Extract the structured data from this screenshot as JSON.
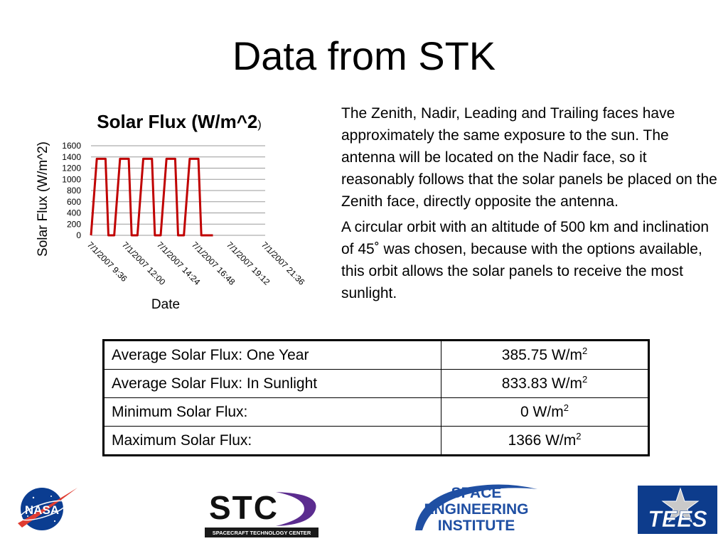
{
  "slide": {
    "title": "Data from STK"
  },
  "paragraphs": [
    "The Zenith, Nadir, Leading and Trailing faces have approximately the same exposure to the sun. The antenna will be located on the Nadir face, so it reasonably follows that the solar panels be placed on the Zenith face, directly opposite the antenna.",
    "A circular orbit with an altitude of 500 km and inclination of 45˚   was chosen, because with the options available, this orbit allows the solar panels to receive the most sunlight."
  ],
  "table": {
    "rows": [
      {
        "label": "Average Solar Flux: One Year",
        "value": "385.75 W/m",
        "exp": "2"
      },
      {
        "label": "Average Solar Flux: In Sunlight",
        "value": "833.83 W/m",
        "exp": "2"
      },
      {
        "label": "Minimum Solar Flux:",
        "value": "0 W/m",
        "exp": "2"
      },
      {
        "label": "Maximum Solar Flux:",
        "value": "1366 W/m",
        "exp": "2"
      }
    ]
  },
  "chart_data": {
    "type": "line",
    "title": "Solar Flux (W/m^2)",
    "xlabel": "Date",
    "ylabel": "Solar Flux (W/m^2)",
    "ylim": [
      0,
      1600
    ],
    "yticks": [
      0,
      200,
      400,
      600,
      800,
      1000,
      1200,
      1400,
      1600
    ],
    "xlim": [
      "7/1/2007 9:36",
      "7/1/2007 21:36"
    ],
    "xticks": [
      "7/1/2007 9:36",
      "7/1/2007 12:00",
      "7/1/2007 14:24",
      "7/1/2007 16:48",
      "7/1/2007 19:12",
      "7/1/2007 21:36"
    ],
    "grid": true,
    "legend": "none",
    "color": "#c00000",
    "series": [
      {
        "x": [
          "7/1/2007 9:36",
          "7/1/2007 10:00",
          "7/1/2007 10:12",
          "7/1/2007 10:24",
          "7/1/2007 10:36",
          "7/1/2007 10:48",
          "7/1/2007 11:12",
          "7/1/2007 11:36",
          "7/1/2007 11:48",
          "7/1/2007 12:00",
          "7/1/2007 12:12",
          "7/1/2007 12:24",
          "7/1/2007 12:48",
          "7/1/2007 13:12",
          "7/1/2007 13:24",
          "7/1/2007 13:36",
          "7/1/2007 13:48",
          "7/1/2007 14:00",
          "7/1/2007 14:24",
          "7/1/2007 14:48",
          "7/1/2007 15:00",
          "7/1/2007 15:12",
          "7/1/2007 15:24",
          "7/1/2007 15:36",
          "7/1/2007 16:00",
          "7/1/2007 16:24",
          "7/1/2007 16:36",
          "7/1/2007 16:48",
          "7/1/2007 17:00",
          "7/1/2007 17:12",
          "7/1/2007 17:36",
          "7/1/2007 18:00"
        ],
        "y": [
          0,
          1366,
          1366,
          1366,
          1366,
          0,
          0,
          1366,
          1366,
          1366,
          1366,
          0,
          0,
          1366,
          1366,
          1366,
          1366,
          0,
          0,
          1366,
          1366,
          1366,
          1366,
          0,
          0,
          1366,
          1366,
          1366,
          1366,
          0,
          0,
          0
        ]
      }
    ]
  },
  "logos": {
    "nasa": {
      "text": "NASA",
      "name_color": "#0b3d91"
    },
    "stc": {
      "text": "STC",
      "subtitle": "SPACECRAFT TECHNOLOGY CENTER",
      "accent": "#5b2c8f"
    },
    "sei": {
      "line1": "SPACE",
      "line2": "ENGINEERING",
      "line3": "INSTITUTE",
      "color": "#1f4fa3"
    },
    "tees": {
      "text": "TEES",
      "bg": "#0d3c8c"
    }
  }
}
